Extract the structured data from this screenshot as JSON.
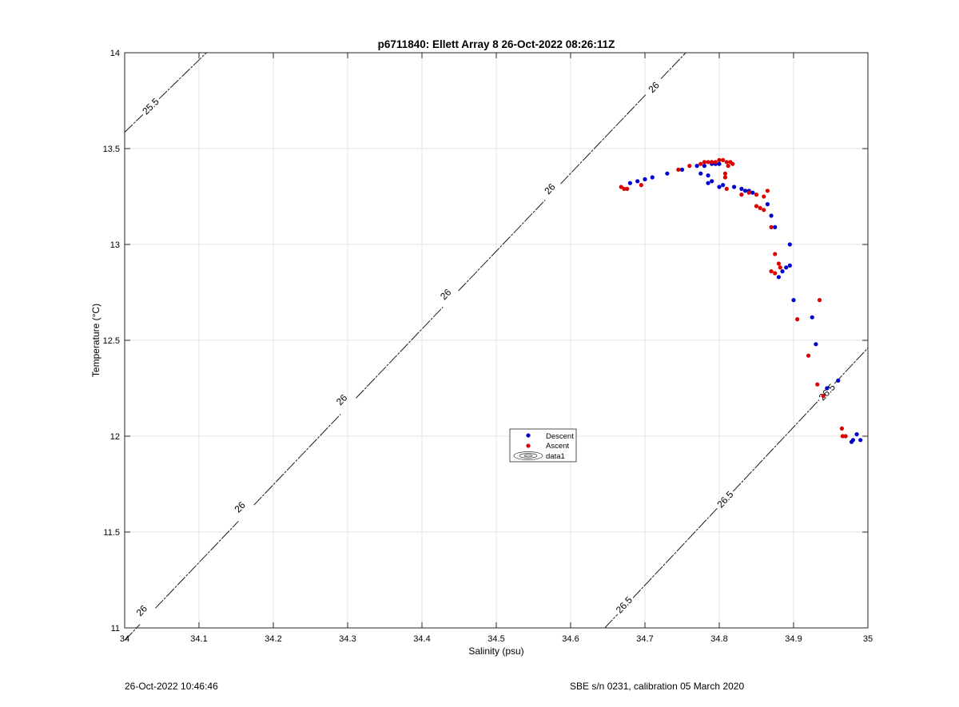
{
  "chart_data": {
    "type": "scatter",
    "title": "p6711840: Ellett Array 8 26-Oct-2022 08:26:11Z",
    "xlabel": "Salinity (psu)",
    "ylabel": "Temperature (°C)",
    "xlim": [
      34,
      35
    ],
    "ylim": [
      11,
      14
    ],
    "xticks": [
      "34",
      "34.1",
      "34.2",
      "34.3",
      "34.4",
      "34.5",
      "34.6",
      "34.7",
      "34.8",
      "34.9",
      "35"
    ],
    "yticks": [
      "11",
      "11.5",
      "12",
      "12.5",
      "13",
      "13.5",
      "14"
    ],
    "grid": true,
    "legend": {
      "placement": "center",
      "entries": [
        "Descent",
        "Ascent",
        "data1"
      ]
    },
    "contours": [
      {
        "label": "25.5",
        "points": [
          [
            34.0,
            13.585
          ],
          [
            34.11,
            14.0
          ]
        ],
        "label_positions": [
          [
            34.035,
            13.72
          ]
        ]
      },
      {
        "label": "26",
        "points": [
          [
            34.0,
            10.935
          ],
          [
            34.755,
            14.0
          ]
        ],
        "label_positions": [
          [
            34.023,
            11.09
          ],
          [
            34.155,
            11.63
          ],
          [
            34.292,
            12.19
          ],
          [
            34.432,
            12.74
          ],
          [
            34.572,
            13.29
          ],
          [
            34.712,
            13.82
          ]
        ]
      },
      {
        "label": "26.5",
        "points": [
          [
            34.646,
            11.0
          ],
          [
            35.0,
            12.46
          ]
        ],
        "label_positions": [
          [
            34.672,
            11.12
          ],
          [
            34.808,
            11.67
          ],
          [
            34.945,
            12.23
          ]
        ]
      }
    ],
    "series": [
      {
        "name": "Descent",
        "color": "#0000cc",
        "points": [
          [
            34.68,
            13.32
          ],
          [
            34.69,
            13.33
          ],
          [
            34.7,
            13.34
          ],
          [
            34.71,
            13.35
          ],
          [
            34.73,
            13.37
          ],
          [
            34.75,
            13.39
          ],
          [
            34.77,
            13.41
          ],
          [
            34.78,
            13.41
          ],
          [
            34.79,
            13.42
          ],
          [
            34.795,
            13.42
          ],
          [
            34.8,
            13.42
          ],
          [
            34.775,
            13.37
          ],
          [
            34.785,
            13.36
          ],
          [
            34.785,
            13.32
          ],
          [
            34.79,
            13.33
          ],
          [
            34.8,
            13.3
          ],
          [
            34.805,
            13.31
          ],
          [
            34.82,
            13.3
          ],
          [
            34.83,
            13.29
          ],
          [
            34.835,
            13.28
          ],
          [
            34.84,
            13.28
          ],
          [
            34.845,
            13.27
          ],
          [
            34.865,
            13.21
          ],
          [
            34.87,
            13.15
          ],
          [
            34.875,
            13.09
          ],
          [
            34.895,
            13.0
          ],
          [
            34.89,
            12.88
          ],
          [
            34.895,
            12.89
          ],
          [
            34.885,
            12.86
          ],
          [
            34.88,
            12.83
          ],
          [
            34.9,
            12.71
          ],
          [
            34.925,
            12.62
          ],
          [
            34.93,
            12.48
          ],
          [
            34.96,
            12.29
          ],
          [
            34.945,
            12.25
          ],
          [
            34.985,
            12.01
          ],
          [
            34.98,
            11.98
          ],
          [
            34.978,
            11.97
          ],
          [
            34.99,
            11.98
          ]
        ]
      },
      {
        "name": "Ascent",
        "color": "#dd0000",
        "points": [
          [
            34.668,
            13.3
          ],
          [
            34.672,
            13.29
          ],
          [
            34.676,
            13.29
          ],
          [
            34.695,
            13.31
          ],
          [
            34.745,
            13.39
          ],
          [
            34.76,
            13.41
          ],
          [
            34.775,
            13.42
          ],
          [
            34.78,
            13.43
          ],
          [
            34.785,
            13.43
          ],
          [
            34.79,
            13.43
          ],
          [
            34.795,
            13.43
          ],
          [
            34.8,
            13.44
          ],
          [
            34.805,
            13.44
          ],
          [
            34.81,
            13.43
          ],
          [
            34.815,
            13.43
          ],
          [
            34.818,
            13.42
          ],
          [
            34.812,
            13.41
          ],
          [
            34.808,
            13.37
          ],
          [
            34.808,
            13.35
          ],
          [
            34.81,
            13.29
          ],
          [
            34.83,
            13.26
          ],
          [
            34.84,
            13.27
          ],
          [
            34.85,
            13.26
          ],
          [
            34.865,
            13.28
          ],
          [
            34.86,
            13.25
          ],
          [
            34.85,
            13.2
          ],
          [
            34.855,
            13.19
          ],
          [
            34.86,
            13.18
          ],
          [
            34.87,
            13.09
          ],
          [
            34.875,
            12.95
          ],
          [
            34.88,
            12.9
          ],
          [
            34.882,
            12.88
          ],
          [
            34.87,
            12.86
          ],
          [
            34.875,
            12.85
          ],
          [
            34.935,
            12.71
          ],
          [
            34.905,
            12.61
          ],
          [
            34.92,
            12.42
          ],
          [
            34.932,
            12.27
          ],
          [
            34.94,
            12.21
          ],
          [
            34.965,
            12.04
          ],
          [
            34.966,
            12.0
          ],
          [
            34.97,
            12.0
          ]
        ]
      }
    ]
  },
  "footer": {
    "left": "26-Oct-2022 10:46:46",
    "right": "SBE s/n 0231, calibration 05 March 2020"
  }
}
